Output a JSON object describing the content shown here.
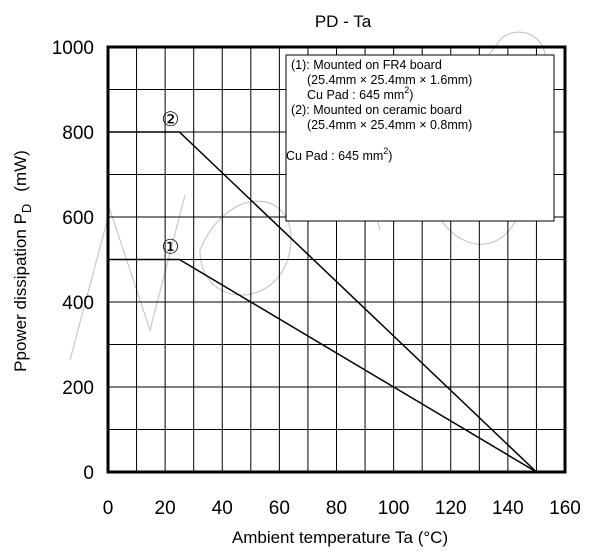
{
  "chart_data": {
    "type": "line",
    "title": "PD - Ta",
    "xlabel": "Ambient temperature   Ta   (°C)",
    "ylabel_main": "Ppower dissipation P",
    "ylabel_sub": "D",
    "ylabel_unit": "(mW)",
    "xlim": [
      0,
      160
    ],
    "ylim": [
      0,
      1000
    ],
    "x_ticks": [
      0,
      20,
      40,
      60,
      80,
      100,
      120,
      140,
      160
    ],
    "y_ticks": [
      0,
      200,
      400,
      600,
      800,
      1000
    ],
    "x_minor_step": 10,
    "y_minor_step": 100,
    "grid": true,
    "legend_position": "top-right",
    "legend_lines": [
      "(1): Mounted on FR4 board",
      "(25.4mm × 25.4mm × 1.6mm)",
      "Cu Pad : 645 mm",
      "(2): Mounted on ceramic board",
      "(25.4mm × 25.4mm × 0.8mm)",
      "Cu Pad : 645 mm"
    ],
    "legend_sup": "2",
    "legend_close_paren": ")",
    "series": [
      {
        "name": "①",
        "x": [
          0,
          25,
          150
        ],
        "y": [
          500,
          500,
          0
        ]
      },
      {
        "name": "②",
        "x": [
          0,
          25,
          150
        ],
        "y": [
          800,
          800,
          0
        ]
      }
    ],
    "line_color": "#000000"
  }
}
